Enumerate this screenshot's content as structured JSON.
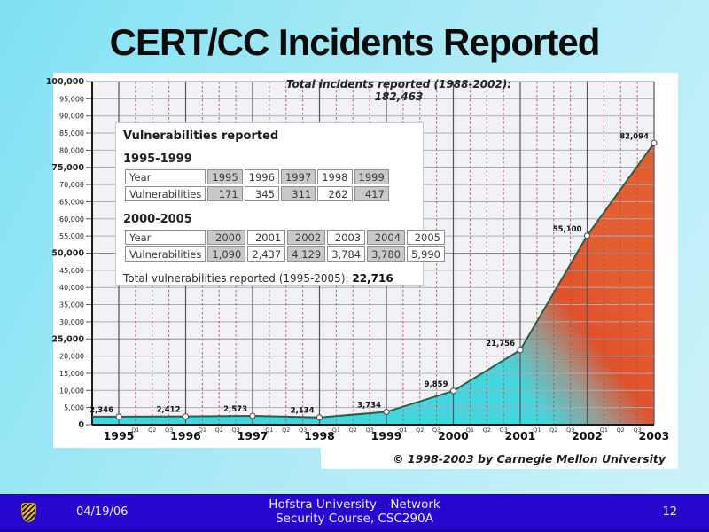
{
  "slide": {
    "title": "CERT/CC Incidents Reported"
  },
  "chart_data": {
    "type": "area",
    "title": "Total incidents reported (1988-2002): 182,463",
    "xlabel": "",
    "ylabel": "",
    "years": [
      1995,
      1996,
      1997,
      1998,
      1999,
      2000,
      2001,
      2002,
      2003
    ],
    "values": [
      2346,
      2412,
      2573,
      2134,
      3734,
      9859,
      21756,
      55100,
      82094
    ],
    "point_labels": [
      "2,346",
      "2,412",
      "2,573",
      "2,134",
      "3,734",
      "9,859",
      "21,756",
      "55,100",
      "82,094"
    ],
    "ylim": [
      0,
      100000
    ],
    "ytick_step": 5000,
    "ymajor_step": 25000,
    "quarter_labels": [
      "Q1",
      "Q2",
      "Q3"
    ],
    "grid": true,
    "legend": "none",
    "copyright": "© 1998-2003 by Carnegie Mellon University",
    "colors": {
      "area_cyan": "#3bd7e2",
      "area_gray": "#9a9a90",
      "area_red": "#e0512c",
      "line": "#2e5c49",
      "plot_bg": "#f1f1f6",
      "hgrid": "#abacb8",
      "hgrid_major": "#8a8a96",
      "year_grid": "#54545e",
      "quarter_grid": "#a85048",
      "axis": "#1a1a1a",
      "marker_fill": "#ffffff",
      "marker_stroke": "#444444"
    }
  },
  "inset": {
    "title": "Vulnerabilities reported",
    "section1": {
      "heading": "1995-1999",
      "year_label": "Year",
      "years": [
        "1995",
        "1996",
        "1997",
        "1998",
        "1999"
      ],
      "vuln_label": "Vulnerabilities",
      "values": [
        "171",
        "345",
        "311",
        "262",
        "417"
      ]
    },
    "section2": {
      "heading": "2000-2005",
      "year_label": "Year",
      "years": [
        "2000",
        "2001",
        "2002",
        "2003",
        "2004",
        "2005"
      ],
      "vuln_label": "Vulnerabilities",
      "values": [
        "1,090",
        "2,437",
        "4,129",
        "3,784",
        "3,780",
        "5,990"
      ]
    },
    "total_label": "Total vulnerabilities reported (1995-2005): ",
    "total_value": "22,716"
  },
  "footer": {
    "date": "04/19/06",
    "line1": "Hofstra University – Network",
    "line2": "Security Course, CSC290A",
    "page": "12",
    "logo": "hofstra-shield-icon"
  }
}
